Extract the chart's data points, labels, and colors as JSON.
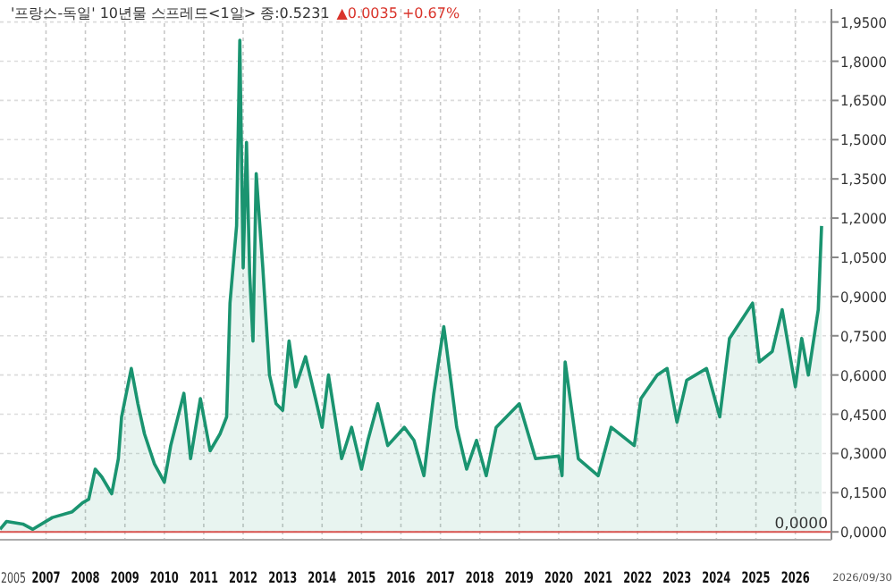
{
  "chart_data": {
    "type": "area",
    "title": "'프랑스-독일' 10년물 스프레드<1일> 종:0.5231",
    "subtitle": "▲0.0035 +0.67%",
    "annotations": [
      "2005",
      "2026/09/30"
    ],
    "x": [
      "2005-11",
      "2006-01",
      "2006-06",
      "2006-09",
      "2007-03",
      "2007-09",
      "2007-12",
      "2008-02",
      "2008-04",
      "2008-06",
      "2008-09",
      "2008-11",
      "2008-12",
      "2009-03",
      "2009-05",
      "2009-07",
      "2009-10",
      "2010-01",
      "2010-03",
      "2010-07",
      "2010-09",
      "2010-12",
      "2011-03",
      "2011-06",
      "2011-08",
      "2011-09",
      "2011-11",
      "2011-12",
      "2012-01",
      "2012-02",
      "2012-03",
      "2012-04",
      "2012-05",
      "2012-07",
      "2012-09",
      "2012-11",
      "2013-01",
      "2013-03",
      "2013-05",
      "2013-08",
      "2013-11",
      "2014-01",
      "2014-03",
      "2014-07",
      "2014-10",
      "2015-01",
      "2015-03",
      "2015-06",
      "2015-09",
      "2016-02",
      "2016-05",
      "2016-08",
      "2016-11",
      "2017-02",
      "2017-04",
      "2017-06",
      "2017-09",
      "2017-12",
      "2018-03",
      "2018-06",
      "2019-01",
      "2019-06",
      "2020-01",
      "2020-02",
      "2020-03",
      "2020-07",
      "2021-01",
      "2021-05",
      "2021-12",
      "2022-02",
      "2022-07",
      "2022-10",
      "2023-01",
      "2023-04",
      "2023-10",
      "2024-02",
      "2024-05",
      "2024-12",
      "2025-02",
      "2025-06",
      "2025-09",
      "2026-01",
      "2026-03",
      "2026-05",
      "2026-08",
      "2026-09"
    ],
    "series": [
      {
        "color": "#1a9470",
        "values": [
          0.01,
          0.04,
          0.03,
          0.01,
          0.055,
          0.077,
          0.11,
          0.125,
          0.24,
          0.21,
          0.146,
          0.28,
          0.44,
          0.625,
          0.49,
          0.375,
          0.26,
          0.19,
          0.33,
          0.53,
          0.28,
          0.51,
          0.31,
          0.375,
          0.44,
          0.875,
          1.17,
          1.88,
          1.01,
          1.49,
          0.99,
          0.73,
          1.37,
          1.01,
          0.6,
          0.49,
          0.465,
          0.73,
          0.555,
          0.67,
          0.51,
          0.4,
          0.6,
          0.28,
          0.4,
          0.24,
          0.35,
          0.49,
          0.33,
          0.4,
          0.35,
          0.215,
          0.53,
          0.785,
          0.6,
          0.4,
          0.24,
          0.35,
          0.215,
          0.4,
          0.49,
          0.28,
          0.29,
          0.215,
          0.65,
          0.28,
          0.215,
          0.4,
          0.33,
          0.51,
          0.6,
          0.625,
          0.42,
          0.58,
          0.625,
          0.44,
          0.74,
          0.875,
          0.65,
          0.69,
          0.85,
          0.555,
          0.74,
          0.6,
          0.85,
          1.17
        ]
      }
    ],
    "xlim": [
      "2005-11",
      "2026-12"
    ],
    "ylim": [
      -0.03,
      2.0
    ],
    "xticks": [
      {
        "value": "2007-01",
        "label": "2007"
      },
      {
        "value": "2008-01",
        "label": "2008"
      },
      {
        "value": "2009-01",
        "label": "2009"
      },
      {
        "value": "2010-01",
        "label": "2010"
      },
      {
        "value": "2011-01",
        "label": "2011"
      },
      {
        "value": "2012-01",
        "label": "2012"
      },
      {
        "value": "2013-01",
        "label": "2013"
      },
      {
        "value": "2014-01",
        "label": "2014"
      },
      {
        "value": "2015-01",
        "label": "2015"
      },
      {
        "value": "2016-01",
        "label": "2016"
      },
      {
        "value": "2017-01",
        "label": "2017"
      },
      {
        "value": "2018-01",
        "label": "2018"
      },
      {
        "value": "2019-01",
        "label": "2019"
      },
      {
        "value": "2020-01",
        "label": "2020"
      },
      {
        "value": "2021-01",
        "label": "2021"
      },
      {
        "value": "2022-01",
        "label": "2022"
      },
      {
        "value": "2023-01",
        "label": "2023"
      },
      {
        "value": "2024-01",
        "label": "2024"
      },
      {
        "value": "2025-01",
        "label": "2025"
      },
      {
        "value": "2026-01",
        "label": "2026"
      }
    ],
    "yticks": [
      {
        "value": 0,
        "label": "0,0000"
      },
      {
        "value": 0.15,
        "label": "0,1500"
      },
      {
        "value": 0.3,
        "label": "0,3000"
      },
      {
        "value": 0.45,
        "label": "0,4500"
      },
      {
        "value": 0.6,
        "label": "0,6000"
      },
      {
        "value": 0.75,
        "label": "0,7500"
      },
      {
        "value": 0.9,
        "label": "0,9000"
      },
      {
        "value": 1.05,
        "label": "1,0500"
      },
      {
        "value": 1.2,
        "label": "1,2000"
      },
      {
        "value": 1.35,
        "label": "1,3500"
      },
      {
        "value": 1.5,
        "label": "1,5000"
      },
      {
        "value": 1.65,
        "label": "1,6500"
      },
      {
        "value": 1.8,
        "label": "1,8000"
      },
      {
        "value": 1.95,
        "label": "1,9500"
      }
    ],
    "ref_lines": [
      {
        "axis": "y",
        "value": 0,
        "label": "0,0000",
        "color": "#d9534f"
      }
    ],
    "grid": true
  }
}
